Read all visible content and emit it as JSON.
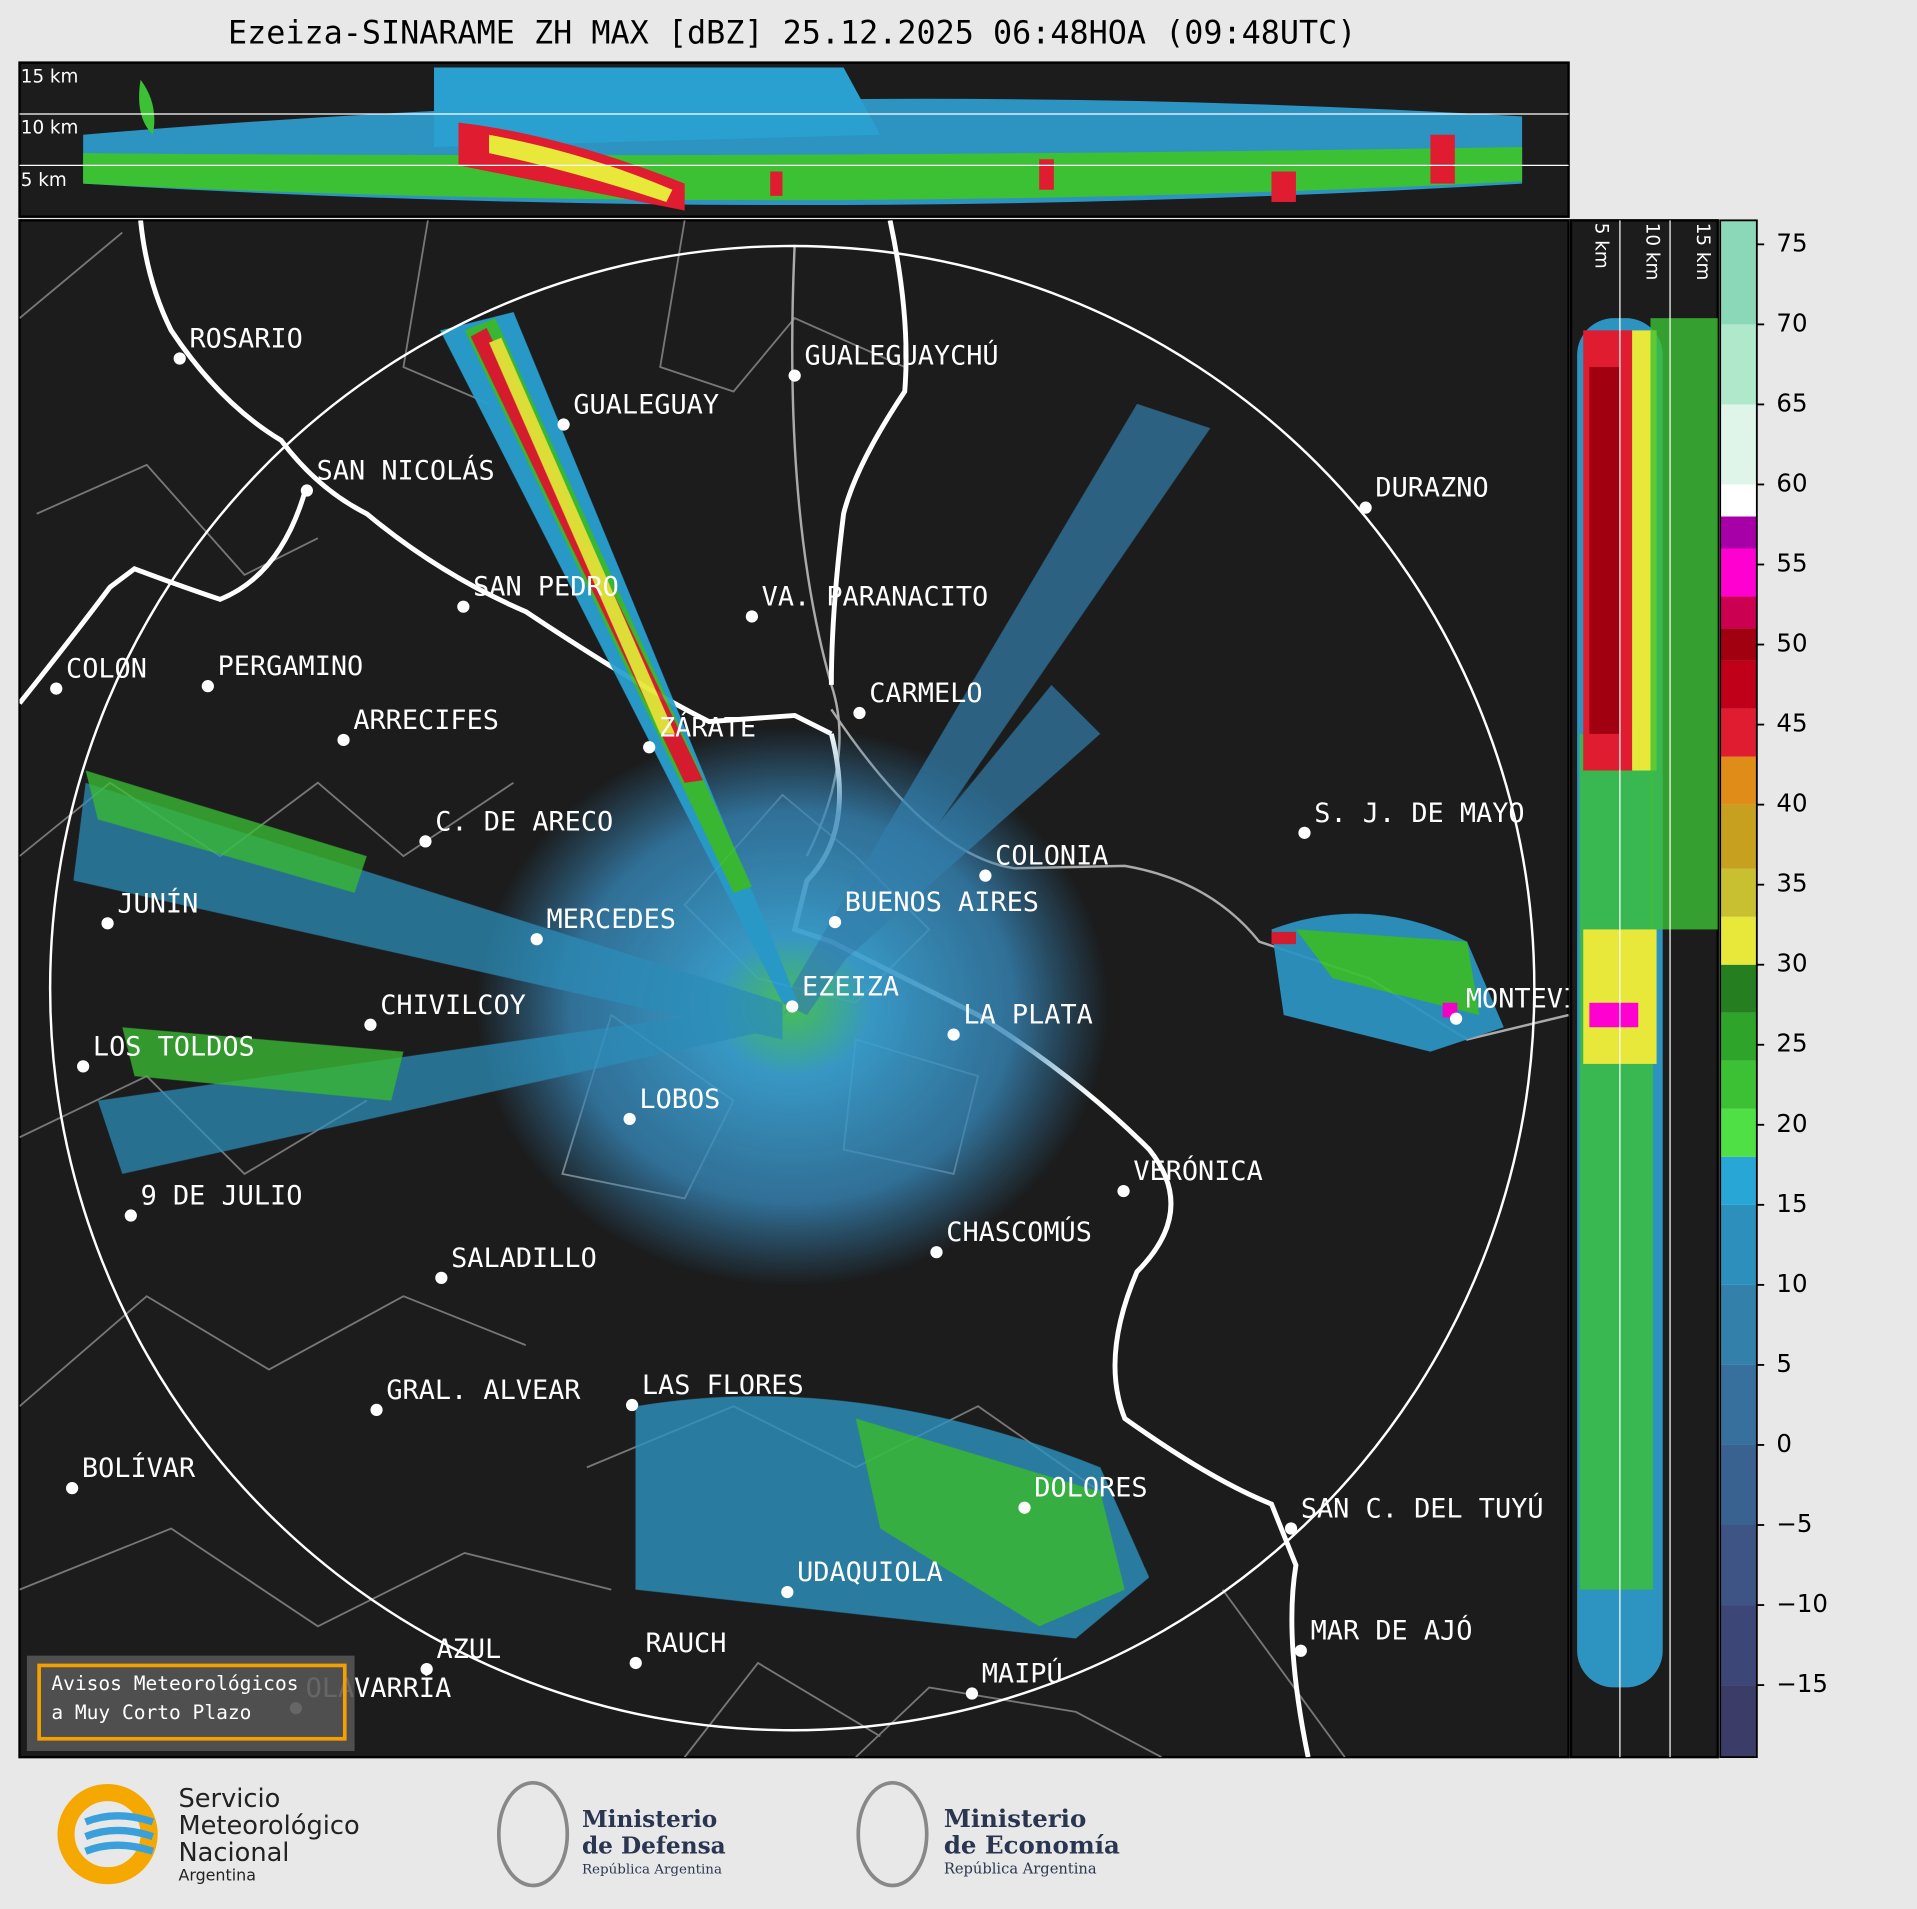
{
  "title": "Ezeiza-SINARAME ZH MAX [dBZ] 25.12.2025 06:48HOA (09:48UTC)",
  "height_labels": [
    "15 km",
    "10 km",
    "5 km"
  ],
  "cities": [
    "ROSARIO",
    "GUALEGUAYCHÚ",
    "GUALEGUAY",
    "SAN NICOLÁS",
    "DURAZNO",
    "SAN PEDRO",
    "VA. PARANACITO",
    "COLON",
    "PERGAMINO",
    "CARMELO",
    "ARRECIFES",
    "ZÁRATE",
    "S. J. DE MAYO",
    "C. DE ARECO",
    "COLONIA",
    "BUENOS AIRES",
    "JUNÍN",
    "MERCEDES",
    "EZEIZA",
    "MONTEVIDEO",
    "CHIVILCOY",
    "LA PLATA",
    "LOS TOLDOS",
    "LOBOS",
    "VERÓNICA",
    "9 DE JULIO",
    "CHASCOMÚS",
    "SALADILLO",
    "GRAL. ALVEAR",
    "LAS FLORES",
    "BOLÍVAR",
    "DOLORES",
    "SAN C. DEL TUYÚ",
    "UDAQUIOLA",
    "MAR DE AJÓ",
    "RAUCH",
    "AZUL",
    "OLAVARRÍA",
    "MAIPÚ"
  ],
  "colorbar": {
    "range": [
      -19.5,
      76.5
    ],
    "ticks": [
      75,
      70,
      65,
      60,
      55,
      50,
      45,
      40,
      35,
      30,
      25,
      20,
      15,
      10,
      5,
      0,
      {
        "value": -5,
        "label": "−5"
      },
      {
        "value": -10,
        "label": "−10"
      },
      {
        "value": -15,
        "label": "−15"
      }
    ],
    "bands": [
      {
        "from": -19.5,
        "color": "#3b3c68"
      },
      {
        "from": -15,
        "color": "#3c4677"
      },
      {
        "from": -10,
        "color": "#3d5485"
      },
      {
        "from": -5,
        "color": "#3a6290"
      },
      {
        "from": 0,
        "color": "#37709c"
      },
      {
        "from": 5,
        "color": "#3380ab"
      },
      {
        "from": 10,
        "color": "#2d90bc"
      },
      {
        "from": 15,
        "color": "#28a6d6"
      },
      {
        "from": 18,
        "color": "#4ee044"
      },
      {
        "from": 21,
        "color": "#3cc034"
      },
      {
        "from": 24,
        "color": "#2ea52a"
      },
      {
        "from": 27,
        "color": "#257f20"
      },
      {
        "from": 30,
        "color": "#e8e83a"
      },
      {
        "from": 33,
        "color": "#c8c030"
      },
      {
        "from": 36,
        "color": "#c8a020"
      },
      {
        "from": 40,
        "color": "#e08c18"
      },
      {
        "from": 43,
        "color": "#e01c30"
      },
      {
        "from": 46,
        "color": "#c00018"
      },
      {
        "from": 49,
        "color": "#a00010"
      },
      {
        "from": 51,
        "color": "#cc0050"
      },
      {
        "from": 53,
        "color": "#ff00d0"
      },
      {
        "from": 56,
        "color": "#a800a8"
      },
      {
        "from": 58,
        "color": "#ffffff"
      },
      {
        "from": 60,
        "color": "#e0f5ea"
      },
      {
        "from": 65,
        "color": "#b0e8cc"
      },
      {
        "from": 70,
        "color": "#8ad8b8"
      }
    ]
  },
  "badge": [
    "Avisos Meteorológicos",
    "a Muy Corto Plazo"
  ],
  "footer": {
    "smn": [
      "Servicio",
      "Meteorológico",
      "Nacional",
      "Argentina"
    ],
    "defensa": [
      "Ministerio",
      "de Defensa",
      "República Argentina"
    ],
    "economia": [
      "Ministerio",
      "de Economía",
      "República Argentina"
    ]
  }
}
